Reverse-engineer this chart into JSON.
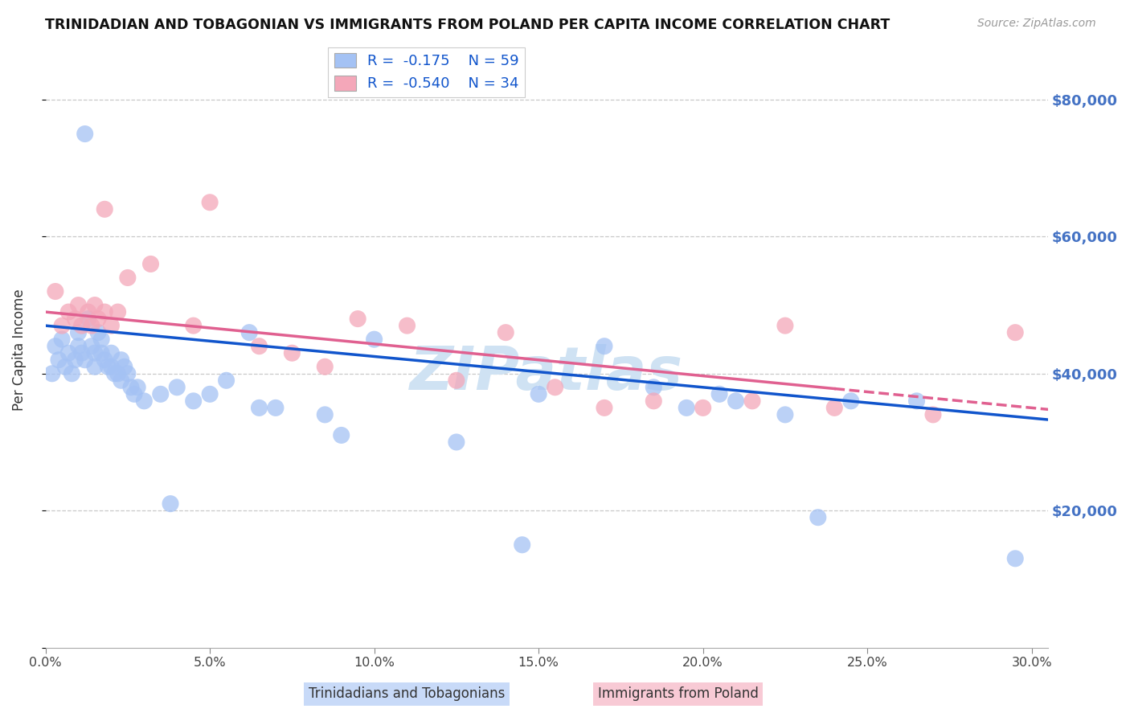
{
  "title": "TRINIDADIAN AND TOBAGONIAN VS IMMIGRANTS FROM POLAND PER CAPITA INCOME CORRELATION CHART",
  "source": "Source: ZipAtlas.com",
  "ylabel": "Per Capita Income",
  "yticks": [
    0,
    20000,
    40000,
    60000,
    80000
  ],
  "xtick_vals": [
    0.0,
    5.0,
    10.0,
    15.0,
    20.0,
    25.0,
    30.0
  ],
  "xtick_labels": [
    "0.0%",
    "5.0%",
    "10.0%",
    "15.0%",
    "20.0%",
    "25.0%",
    "30.0%"
  ],
  "xmin": 0.0,
  "xmax": 30.5,
  "ymin": 0,
  "ymax": 87000,
  "blue_R": "-0.175",
  "blue_N": "59",
  "pink_R": "-0.540",
  "pink_N": "34",
  "legend_label_blue": "Trinidadians and Tobagonians",
  "legend_label_pink": "Immigrants from Poland",
  "blue_scatter_color": "#a4c2f4",
  "pink_scatter_color": "#f4a7b9",
  "blue_line_color": "#1155cc",
  "pink_line_color": "#e06090",
  "ytick_color": "#4472c4",
  "grid_color": "#c8c8c8",
  "watermark_color": "#cfe2f3",
  "blue_x": [
    0.2,
    0.3,
    0.4,
    0.5,
    0.6,
    0.7,
    0.8,
    0.9,
    1.0,
    1.0,
    1.1,
    1.2,
    1.3,
    1.4,
    1.5,
    1.5,
    1.6,
    1.7,
    1.7,
    1.8,
    1.9,
    2.0,
    2.0,
    2.1,
    2.2,
    2.3,
    2.3,
    2.4,
    2.5,
    2.6,
    2.7,
    2.8,
    3.0,
    3.5,
    4.0,
    5.0,
    5.5,
    6.2,
    8.5,
    10.0,
    12.5,
    14.5,
    15.0,
    17.0,
    18.5,
    19.5,
    20.5,
    21.0,
    22.5,
    23.5,
    1.2,
    3.8,
    24.5,
    26.5,
    9.0,
    7.0,
    4.5,
    6.5,
    29.5
  ],
  "blue_y": [
    40000,
    44000,
    42000,
    45000,
    41000,
    43000,
    40000,
    42000,
    46000,
    44000,
    43000,
    42000,
    48000,
    44000,
    43000,
    41000,
    46000,
    45000,
    43000,
    42000,
    41000,
    43000,
    41000,
    40000,
    40000,
    42000,
    39000,
    41000,
    40000,
    38000,
    37000,
    38000,
    36000,
    37000,
    38000,
    37000,
    39000,
    46000,
    34000,
    45000,
    30000,
    15000,
    37000,
    44000,
    38000,
    35000,
    37000,
    36000,
    34000,
    19000,
    75000,
    21000,
    36000,
    36000,
    31000,
    35000,
    36000,
    35000,
    13000
  ],
  "pink_x": [
    0.3,
    0.5,
    0.7,
    0.9,
    1.0,
    1.1,
    1.3,
    1.4,
    1.5,
    1.6,
    1.8,
    2.0,
    2.2,
    2.5,
    3.2,
    4.5,
    5.0,
    6.5,
    7.5,
    8.5,
    9.5,
    11.0,
    12.5,
    14.0,
    15.5,
    17.0,
    18.5,
    20.0,
    21.5,
    22.5,
    24.0,
    27.0,
    1.8,
    29.5
  ],
  "pink_y": [
    52000,
    47000,
    49000,
    48000,
    50000,
    47000,
    49000,
    47000,
    50000,
    48000,
    49000,
    47000,
    49000,
    54000,
    56000,
    47000,
    65000,
    44000,
    43000,
    41000,
    48000,
    47000,
    39000,
    46000,
    38000,
    35000,
    36000,
    35000,
    36000,
    47000,
    35000,
    34000,
    64000,
    46000
  ],
  "pink_dash_start": 24.0
}
